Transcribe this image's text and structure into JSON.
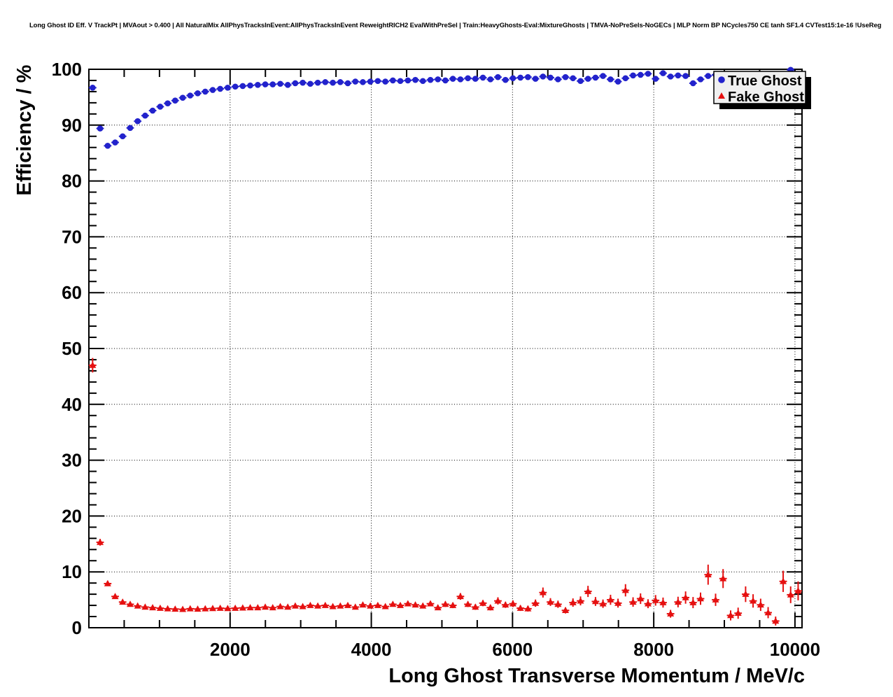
{
  "chart_data": {
    "type": "scatter",
    "title": "Long Ghost ID Eff. V TrackPt | MVAout > 0.400 | All NaturalMix AllPhysTracksInEvent:AllPhysTracksInEvent ReweightRICH2 EvalWithPreSel | Train:HeavyGhosts-Eval:MixtureGhosts | TMVA-NoPreSels-NoGECs | MLP Norm BP NCycles750 CE tanh SF1.4 CVTest15:1e-16 !UseReg",
    "xlabel": "Long Ghost Transverse Momentum / MeV/c",
    "ylabel": "Efficiency / %",
    "xlim": [
      0,
      10100
    ],
    "ylim": [
      0,
      100
    ],
    "x_major_ticks": [
      2000,
      4000,
      6000,
      8000,
      10000
    ],
    "x_minor_step": 500,
    "y_major_ticks": [
      0,
      10,
      20,
      30,
      40,
      50,
      60,
      70,
      80,
      90,
      100
    ],
    "y_minor_step": 2,
    "grid": "dotted-major",
    "frame_color": "#000000",
    "legend": {
      "position": "top-right",
      "fill": "#f0f0f0",
      "border_color": "#000000",
      "shadow_color": "#000000",
      "entries": [
        {
          "label": "True Ghost",
          "marker": "circle",
          "color": "#2222cc"
        },
        {
          "label": "Fake Ghost",
          "marker": "triangle",
          "color": "#e51010"
        }
      ]
    },
    "series": [
      {
        "name": "True Ghost",
        "marker": "circle",
        "color": "#2222cc",
        "x": [
          53,
          159,
          266,
          372,
          478,
          585,
          691,
          797,
          903,
          1010,
          1116,
          1222,
          1329,
          1435,
          1541,
          1648,
          1754,
          1860,
          1966,
          2073,
          2179,
          2285,
          2392,
          2498,
          2604,
          2711,
          2817,
          2923,
          3029,
          3136,
          3242,
          3348,
          3455,
          3561,
          3667,
          3774,
          3880,
          3986,
          4092,
          4199,
          4305,
          4411,
          4518,
          4624,
          4730,
          4837,
          4943,
          5049,
          5155,
          5262,
          5368,
          5474,
          5581,
          5687,
          5793,
          5900,
          6006,
          6112,
          6218,
          6325,
          6431,
          6537,
          6644,
          6750,
          6856,
          6963,
          7069,
          7175,
          7281,
          7388,
          7494,
          7600,
          7707,
          7813,
          7919,
          8026,
          8132,
          8238,
          8344,
          8451,
          8557,
          8663,
          8770,
          8876,
          8982,
          9089,
          9195,
          9301,
          9407,
          9514,
          9620,
          9726,
          9833,
          9939,
          10045
        ],
        "y": [
          96.7,
          89.4,
          86.3,
          86.9,
          88.0,
          89.5,
          90.7,
          91.7,
          92.6,
          93.3,
          93.9,
          94.4,
          94.9,
          95.3,
          95.7,
          96.0,
          96.3,
          96.5,
          96.7,
          96.9,
          97.0,
          97.1,
          97.2,
          97.3,
          97.3,
          97.4,
          97.2,
          97.5,
          97.6,
          97.4,
          97.6,
          97.7,
          97.6,
          97.7,
          97.5,
          97.8,
          97.7,
          97.8,
          97.9,
          97.8,
          98.0,
          97.9,
          98.0,
          98.1,
          97.9,
          98.1,
          98.2,
          98.0,
          98.3,
          98.2,
          98.4,
          98.3,
          98.5,
          98.2,
          98.6,
          98.1,
          98.4,
          98.5,
          98.6,
          98.3,
          98.7,
          98.5,
          98.2,
          98.6,
          98.4,
          97.9,
          98.3,
          98.5,
          98.8,
          98.2,
          97.8,
          98.4,
          98.9,
          99.0,
          99.2,
          98.3,
          99.3,
          98.7,
          98.9,
          98.8,
          97.5,
          98.2,
          98.8,
          99.0,
          98.5,
          98.0,
          98.7,
          98.3,
          97.4,
          98.6,
          98.1,
          97.9,
          98.3,
          99.9,
          97.6
        ],
        "yerr": [
          0.5,
          0.4,
          0.35,
          0.3,
          0.3,
          0.25,
          0.2,
          0.2,
          0.18,
          0.15,
          0.15,
          0.12,
          0.12,
          0.1,
          0.1,
          0.1,
          0.1,
          0.1,
          0.1,
          0.1,
          0.1,
          0.08,
          0.08,
          0.08,
          0.08,
          0.08,
          0.08,
          0.08,
          0.08,
          0.08,
          0.08,
          0.08,
          0.08,
          0.08,
          0.08,
          0.08,
          0.08,
          0.08,
          0.08,
          0.08,
          0.1,
          0.1,
          0.1,
          0.1,
          0.1,
          0.1,
          0.1,
          0.1,
          0.1,
          0.1,
          0.12,
          0.12,
          0.12,
          0.12,
          0.12,
          0.15,
          0.15,
          0.15,
          0.15,
          0.15,
          0.18,
          0.18,
          0.2,
          0.2,
          0.2,
          0.25,
          0.25,
          0.25,
          0.25,
          0.3,
          0.3,
          0.3,
          0.3,
          0.3,
          0.35,
          0.35,
          0.35,
          0.4,
          0.4,
          0.4,
          0.45,
          0.45,
          0.5,
          0.5,
          0.5,
          0.55,
          0.55,
          0.6,
          0.6,
          0.6,
          0.65,
          0.65,
          0.7,
          0.1,
          0.8
        ]
      },
      {
        "name": "Fake Ghost",
        "marker": "triangle",
        "color": "#e51010",
        "x": [
          53,
          159,
          266,
          372,
          478,
          585,
          691,
          797,
          903,
          1010,
          1116,
          1222,
          1329,
          1435,
          1541,
          1648,
          1754,
          1860,
          1966,
          2073,
          2179,
          2285,
          2392,
          2498,
          2604,
          2711,
          2817,
          2923,
          3029,
          3136,
          3242,
          3348,
          3455,
          3561,
          3667,
          3774,
          3880,
          3986,
          4092,
          4199,
          4305,
          4411,
          4518,
          4624,
          4730,
          4837,
          4943,
          5049,
          5155,
          5262,
          5368,
          5474,
          5581,
          5687,
          5793,
          5900,
          6006,
          6112,
          6218,
          6325,
          6431,
          6537,
          6644,
          6750,
          6856,
          6963,
          7069,
          7175,
          7281,
          7388,
          7494,
          7600,
          7707,
          7813,
          7919,
          8026,
          8132,
          8238,
          8344,
          8451,
          8557,
          8663,
          8770,
          8876,
          8982,
          9089,
          9195,
          9301,
          9407,
          9514,
          9620,
          9726,
          9833,
          9939,
          10045
        ],
        "y": [
          47.0,
          15.3,
          7.9,
          5.6,
          4.6,
          4.2,
          3.9,
          3.7,
          3.6,
          3.5,
          3.4,
          3.35,
          3.3,
          3.4,
          3.35,
          3.4,
          3.45,
          3.5,
          3.45,
          3.5,
          3.55,
          3.6,
          3.6,
          3.7,
          3.6,
          3.8,
          3.7,
          3.9,
          3.8,
          4.0,
          3.9,
          4.0,
          3.8,
          3.9,
          4.0,
          3.7,
          4.1,
          3.9,
          4.0,
          3.8,
          4.2,
          4.0,
          4.3,
          4.1,
          3.9,
          4.3,
          3.6,
          4.2,
          4.0,
          5.6,
          4.2,
          3.7,
          4.4,
          3.6,
          4.8,
          4.1,
          4.3,
          3.5,
          3.4,
          4.4,
          6.3,
          4.6,
          4.2,
          3.1,
          4.5,
          4.8,
          6.5,
          4.7,
          4.3,
          5.0,
          4.4,
          6.7,
          4.6,
          5.2,
          4.3,
          4.9,
          4.5,
          2.5,
          4.6,
          5.4,
          4.5,
          5.2,
          9.5,
          5.0,
          8.8,
          2.2,
          2.6,
          6.0,
          4.8,
          4.1,
          2.7,
          1.2,
          8.3,
          5.9,
          6.6
        ],
        "yerr": [
          1.3,
          0.6,
          0.45,
          0.4,
          0.35,
          0.3,
          0.3,
          0.28,
          0.27,
          0.26,
          0.25,
          0.25,
          0.25,
          0.25,
          0.25,
          0.25,
          0.25,
          0.25,
          0.25,
          0.25,
          0.25,
          0.25,
          0.26,
          0.26,
          0.27,
          0.27,
          0.28,
          0.28,
          0.29,
          0.3,
          0.3,
          0.3,
          0.3,
          0.32,
          0.32,
          0.33,
          0.35,
          0.35,
          0.36,
          0.38,
          0.4,
          0.4,
          0.42,
          0.42,
          0.44,
          0.46,
          0.46,
          0.48,
          0.5,
          0.6,
          0.5,
          0.5,
          0.55,
          0.5,
          0.65,
          0.55,
          0.6,
          0.5,
          0.5,
          0.65,
          0.9,
          0.7,
          0.65,
          0.55,
          0.75,
          0.8,
          1.0,
          0.8,
          0.75,
          0.9,
          0.8,
          1.1,
          0.85,
          0.95,
          0.8,
          0.95,
          0.9,
          0.7,
          0.95,
          1.1,
          1.0,
          1.1,
          1.8,
          1.1,
          1.7,
          0.9,
          1.0,
          1.4,
          1.2,
          1.1,
          1.0,
          0.8,
          1.9,
          1.5,
          1.7
        ]
      }
    ]
  }
}
